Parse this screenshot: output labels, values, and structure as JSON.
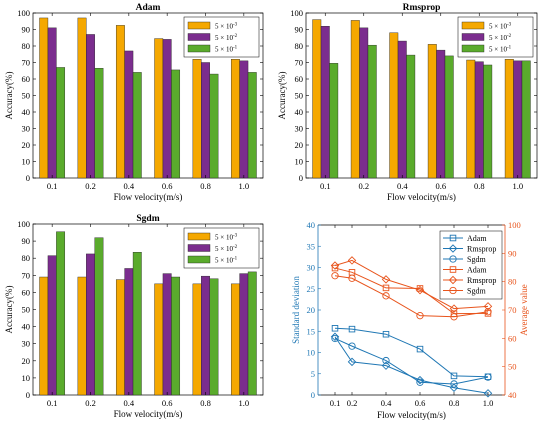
{
  "chart_data": [
    {
      "type": "bar",
      "title": "Adam",
      "xlabel": "Flow velocity(m/s)",
      "ylabel": "Accuracy(%)",
      "categories": [
        "0.1",
        "0.2",
        "0.4",
        "0.6",
        "0.8",
        "1.0"
      ],
      "ylim": [
        0,
        100
      ],
      "yticks": [
        "0",
        "10",
        "20",
        "30",
        "40",
        "50",
        "60",
        "70",
        "80",
        "90",
        "100"
      ],
      "grid": false,
      "legend_position": "top-right",
      "series": [
        {
          "name": "5 × 10⁻³",
          "color": "#F5A800",
          "values": [
            97,
            97,
            92.5,
            84.5,
            72,
            72
          ]
        },
        {
          "name": "5 × 10⁻²",
          "color": "#7B2D8E",
          "values": [
            91,
            87,
            77,
            84,
            70,
            71
          ]
        },
        {
          "name": "5 × 10⁻¹",
          "color": "#5AAB2C",
          "values": [
            67,
            66.5,
            64,
            65.5,
            63,
            64
          ]
        }
      ]
    },
    {
      "type": "bar",
      "title": "Rmsprop",
      "xlabel": "Flow velocity(m/s)",
      "ylabel": "Accuracy(%)",
      "categories": [
        "0.1",
        "0.2",
        "0.4",
        "0.6",
        "0.8",
        "1.0"
      ],
      "ylim": [
        0,
        100
      ],
      "yticks": [
        "0",
        "10",
        "20",
        "30",
        "40",
        "50",
        "60",
        "70",
        "80",
        "90",
        "100"
      ],
      "grid": false,
      "legend_position": "top-right",
      "series": [
        {
          "name": "5 × 10⁻³",
          "color": "#F5A800",
          "values": [
            96,
            95.5,
            88,
            81,
            71.5,
            72
          ]
        },
        {
          "name": "5 × 10⁻²",
          "color": "#7B2D8E",
          "values": [
            92,
            91,
            83,
            77.5,
            70.5,
            71
          ]
        },
        {
          "name": "5 × 10⁻¹",
          "color": "#5AAB2C",
          "values": [
            69.5,
            80.5,
            74.5,
            74,
            68.5,
            71
          ]
        }
      ]
    },
    {
      "type": "bar",
      "title": "Sgdm",
      "xlabel": "Flow velocity(m/s)",
      "ylabel": "Accuracy(%)",
      "categories": [
        "0.1",
        "0.2",
        "0.4",
        "0.6",
        "0.8",
        "1.0"
      ],
      "ylim": [
        0,
        100
      ],
      "yticks": [
        "0",
        "10",
        "20",
        "30",
        "40",
        "50",
        "60",
        "70",
        "80",
        "90",
        "100"
      ],
      "grid": false,
      "legend_position": "top-right",
      "series": [
        {
          "name": "5 × 10⁻³",
          "color": "#F5A800",
          "values": [
            69,
            69,
            67.5,
            65,
            65,
            65
          ]
        },
        {
          "name": "5 × 10⁻²",
          "color": "#7B2D8E",
          "values": [
            81.5,
            82.5,
            74,
            71,
            69.5,
            71
          ]
        },
        {
          "name": "5 × 10⁻¹",
          "color": "#5AAB2C",
          "values": [
            95.5,
            92,
            83.5,
            69,
            68,
            72
          ]
        }
      ]
    },
    {
      "type": "line",
      "title": "",
      "xlabel": "Flow velocity(m/s)",
      "ylabel": "Standard deviation",
      "y2label": "Average value",
      "x": [
        0.1,
        0.2,
        0.4,
        0.6,
        0.8,
        1.0
      ],
      "xticks": [
        "0.1",
        "0.2",
        "0.4",
        "0.6",
        "0.8",
        "1.0"
      ],
      "xlim": [
        0,
        1.1
      ],
      "ylim": [
        0,
        40
      ],
      "yticks": [
        "0",
        "5",
        "10",
        "15",
        "20",
        "25",
        "30",
        "35",
        "40"
      ],
      "y2lim": [
        40,
        100
      ],
      "y2ticks": [
        "40",
        "50",
        "60",
        "70",
        "80",
        "90",
        "100"
      ],
      "left_axis_color": "#1F77B4",
      "right_axis_color": "#E8541C",
      "grid": false,
      "legend_position": "top-right",
      "series": [
        {
          "name": "Adam",
          "axis": "left",
          "marker": "square",
          "color": "#1F77B4",
          "values": [
            15.7,
            15.5,
            14.3,
            10.8,
            4.5,
            4.3
          ]
        },
        {
          "name": "Rmsprop",
          "axis": "left",
          "marker": "diamond",
          "color": "#1F77B4",
          "values": [
            13.7,
            7.8,
            6.9,
            3.5,
            1.7,
            0.4
          ]
        },
        {
          "name": "Sgdm",
          "axis": "left",
          "marker": "circle",
          "color": "#1F77B4",
          "values": [
            13.3,
            11.5,
            8.1,
            3.0,
            2.6,
            4.2
          ]
        },
        {
          "name": "Adam",
          "axis": "right",
          "marker": "square",
          "color": "#E8541C",
          "values": [
            84.8,
            83.3,
            77.8,
            77.6,
            68.7,
            68.8
          ]
        },
        {
          "name": "Rmsprop",
          "axis": "right",
          "marker": "diamond",
          "color": "#E8541C",
          "values": [
            85.7,
            87.5,
            80.8,
            77.0,
            70.5,
            71.3
          ]
        },
        {
          "name": "Sgdm",
          "axis": "right",
          "marker": "circle",
          "color": "#E8541C",
          "values": [
            82.1,
            81.2,
            75.0,
            68.0,
            67.6,
            69.4
          ]
        }
      ]
    }
  ]
}
